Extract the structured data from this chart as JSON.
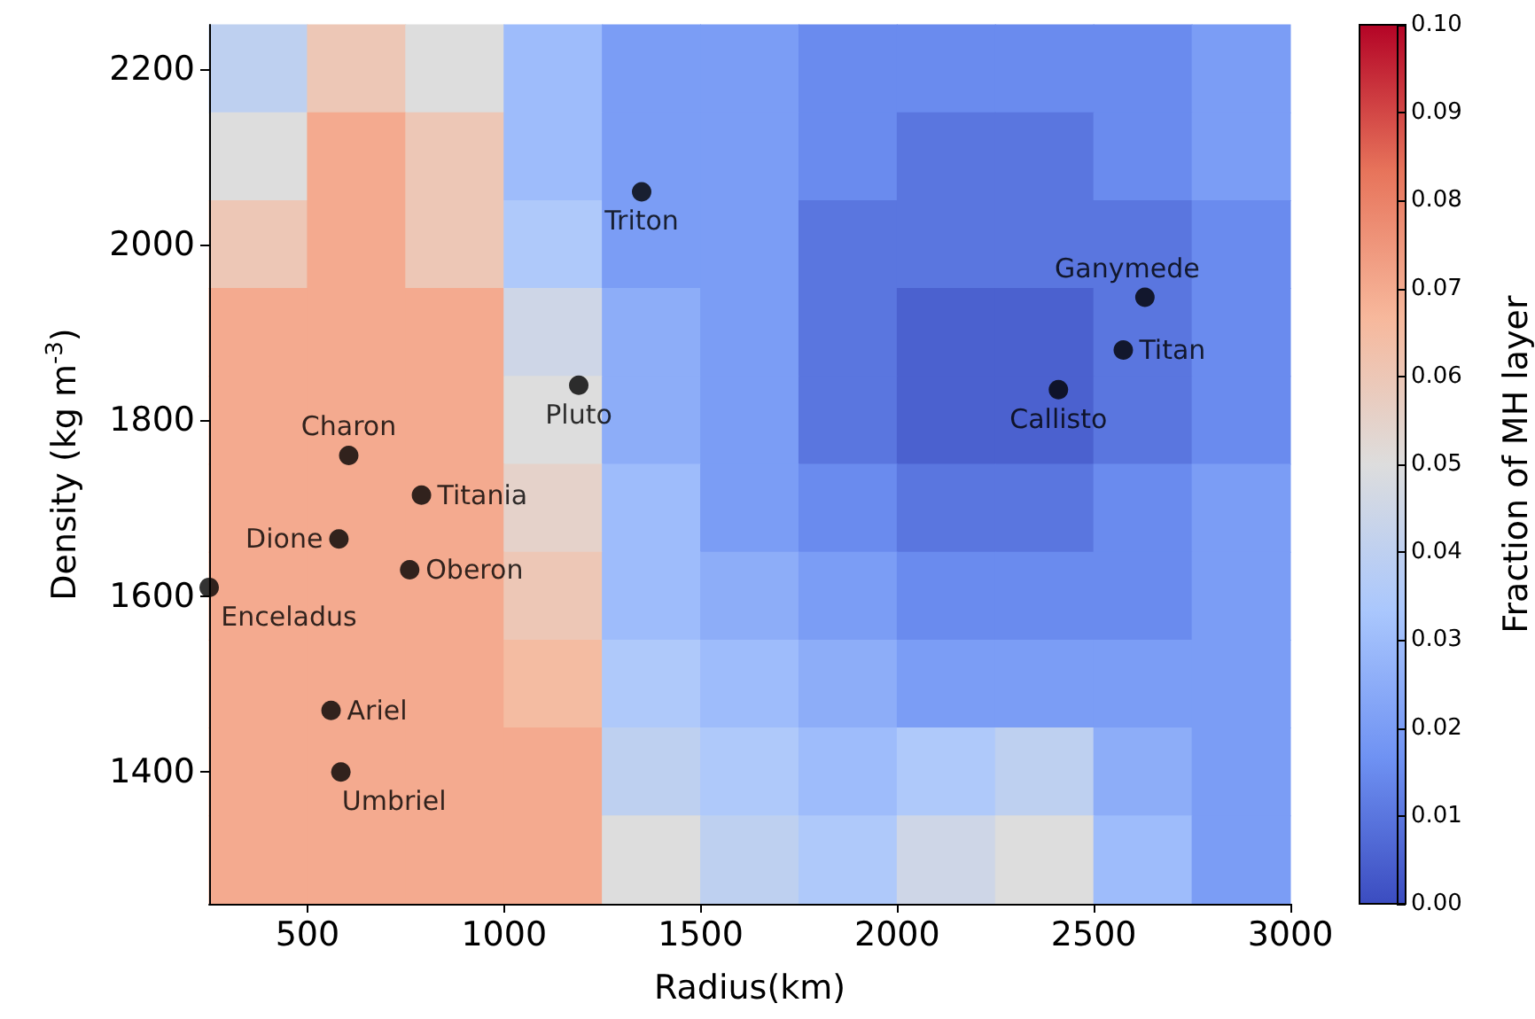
{
  "chart_data": [
    {
      "type": "heatmap",
      "clabel": "Fraction of MH layer",
      "clim": [
        0,
        0.1
      ],
      "cticks": [
        {
          "value": 0,
          "label": "0.00"
        },
        {
          "value": 0.01,
          "label": "0.01"
        },
        {
          "value": 0.02,
          "label": "0.02"
        },
        {
          "value": 0.03,
          "label": "0.03"
        },
        {
          "value": 0.04,
          "label": "0.04"
        },
        {
          "value": 0.05,
          "label": "0.05"
        },
        {
          "value": 0.06,
          "label": "0.06"
        },
        {
          "value": 0.07,
          "label": "0.07"
        },
        {
          "value": 0.08,
          "label": "0.08"
        },
        {
          "value": 0.09,
          "label": "0.09"
        },
        {
          "value": 0.1,
          "label": "0.10"
        }
      ],
      "categories": [
        null,
        null,
        null,
        null,
        null,
        null,
        null,
        null,
        null,
        null,
        null
      ],
      "y_categories": [
        null,
        null,
        null,
        null,
        null,
        null,
        null,
        null,
        null,
        null
      ],
      "cells": [
        [
          0.04,
          0.06,
          0.05,
          0.03,
          0.02,
          0.02,
          0.015,
          0.015,
          0.015,
          0.015,
          0.02
        ],
        [
          0.05,
          0.07,
          0.06,
          0.03,
          0.02,
          0.02,
          0.015,
          0.01,
          0.01,
          0.015,
          0.02
        ],
        [
          0.06,
          0.07,
          0.06,
          0.035,
          0.02,
          0.02,
          0.01,
          0.01,
          0.01,
          0.01,
          0.015
        ],
        [
          0.07,
          0.07,
          0.07,
          0.045,
          0.025,
          0.02,
          0.01,
          0.005,
          0.005,
          0.01,
          0.015
        ],
        [
          0.07,
          0.07,
          0.07,
          0.05,
          0.025,
          0.02,
          0.01,
          0.005,
          0.005,
          0.01,
          0.015
        ],
        [
          0.07,
          0.07,
          0.07,
          0.055,
          0.03,
          0.02,
          0.015,
          0.01,
          0.01,
          0.015,
          0.02
        ],
        [
          0.07,
          0.07,
          0.07,
          0.06,
          0.03,
          0.025,
          0.02,
          0.015,
          0.015,
          0.015,
          0.02
        ],
        [
          0.07,
          0.07,
          0.07,
          0.065,
          0.035,
          0.03,
          0.025,
          0.02,
          0.02,
          0.02,
          0.02
        ],
        [
          0.07,
          0.07,
          0.07,
          0.07,
          0.04,
          0.035,
          0.03,
          0.035,
          0.04,
          0.025,
          0.02
        ],
        [
          0.07,
          0.07,
          0.07,
          0.07,
          0.05,
          0.04,
          0.035,
          0.045,
          0.05,
          0.03,
          0.02
        ]
      ]
    },
    {
      "type": "scatter",
      "xlabel": "Radius(km)",
      "ylabel": "Density (kg m$^{-3}$)",
      "xlim": [
        250,
        3000
      ],
      "xticks": [
        500,
        1000,
        1500,
        2000,
        2500,
        3000
      ],
      "ylim": [
        1250,
        2250
      ],
      "yticks": [
        1400,
        1600,
        1800,
        2000,
        2200
      ],
      "grid": false,
      "marker": "circle",
      "series": [
        {
          "color": "#000000",
          "x": [
            1350,
            2630,
            2575,
            2410,
            1190,
            605,
            790,
            580,
            760,
            250,
            560,
            585
          ],
          "values": [
            2060,
            1940,
            1880,
            1835,
            1840,
            1760,
            1715,
            1665,
            1630,
            1610,
            1470,
            1400
          ]
        }
      ],
      "annotations": [
        {
          "text": "Triton",
          "x": 1350,
          "y": 2060
        },
        {
          "text": "Ganymede",
          "x": 2630,
          "y": 1940
        },
        {
          "text": "Titan",
          "x": 2575,
          "y": 1880
        },
        {
          "text": "Callisto",
          "x": 2410,
          "y": 1835
        },
        {
          "text": "Pluto",
          "x": 1190,
          "y": 1840
        },
        {
          "text": "Charon",
          "x": 605,
          "y": 1760
        },
        {
          "text": "Titania",
          "x": 790,
          "y": 1715
        },
        {
          "text": "Dione",
          "x": 580,
          "y": 1665
        },
        {
          "text": "Oberon",
          "x": 760,
          "y": 1630
        },
        {
          "text": "Enceladus",
          "x": 250,
          "y": 1610
        },
        {
          "text": "Ariel",
          "x": 560,
          "y": 1470
        },
        {
          "text": "Umbriel",
          "x": 585,
          "y": 1400
        }
      ]
    }
  ]
}
